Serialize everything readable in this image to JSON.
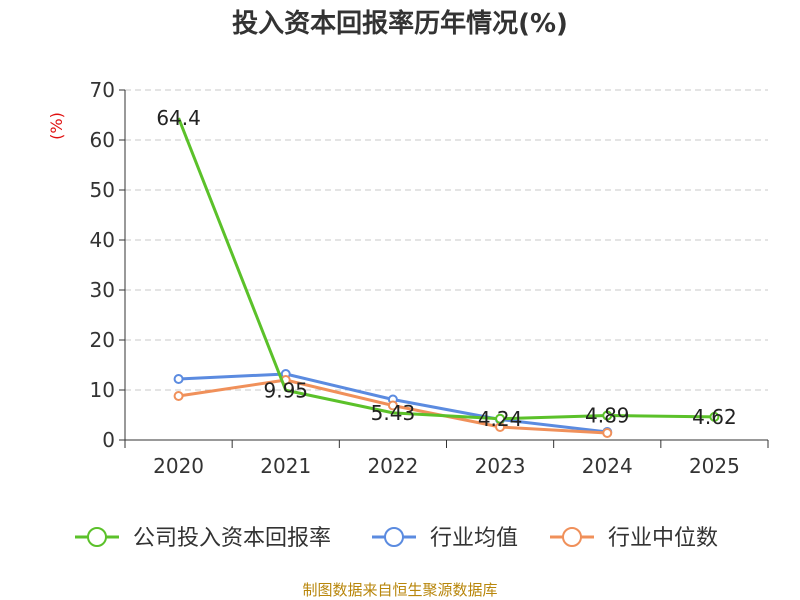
{
  "chart_data": {
    "type": "line",
    "title": "投入资本回报率历年情况(%)",
    "ylabel": "(%)",
    "xlabel": "",
    "categories": [
      "2020",
      "2021",
      "2022",
      "2023",
      "2024",
      "2025"
    ],
    "ylim": [
      0,
      70
    ],
    "yticks": [
      0,
      10,
      20,
      30,
      40,
      50,
      60,
      70
    ],
    "grid": true,
    "legend_position": "bottom",
    "series": [
      {
        "name": "公司投入资本回报率",
        "color": "#5bc12a",
        "values": [
          64.4,
          9.95,
          5.43,
          4.24,
          4.89,
          4.62
        ],
        "labels": [
          "64.4",
          "9.95",
          "5.43",
          "4.24",
          "4.89",
          "4.62"
        ],
        "markers": [
          false,
          false,
          false,
          true,
          true,
          true
        ]
      },
      {
        "name": "行业均值",
        "color": "#5b8be0",
        "values": [
          12.2,
          13.2,
          8.1,
          4.1,
          1.6,
          null
        ],
        "markers": [
          true,
          true,
          true,
          true,
          true,
          false
        ]
      },
      {
        "name": "行业中位数",
        "color": "#f0905a",
        "values": [
          8.8,
          12.0,
          6.9,
          2.6,
          1.4,
          null
        ],
        "markers": [
          true,
          true,
          true,
          true,
          true,
          false
        ]
      }
    ]
  },
  "source_text": "制图数据来自恒生聚源数据库"
}
